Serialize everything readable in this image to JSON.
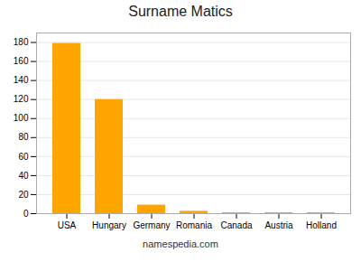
{
  "chart_data": {
    "type": "bar",
    "title": "Surname Matics",
    "categories": [
      "USA",
      "Hungary",
      "Germany",
      "Romania",
      "Canada",
      "Austria",
      "Holland"
    ],
    "values": [
      179,
      120,
      9,
      2.5,
      1,
      1,
      1
    ],
    "color": "#FFA500",
    "ylim": [
      0,
      190
    ],
    "yticks": [
      0,
      20,
      40,
      60,
      80,
      100,
      120,
      140,
      160,
      180
    ],
    "grid": true,
    "annotations": [
      "namespedia.com"
    ]
  }
}
